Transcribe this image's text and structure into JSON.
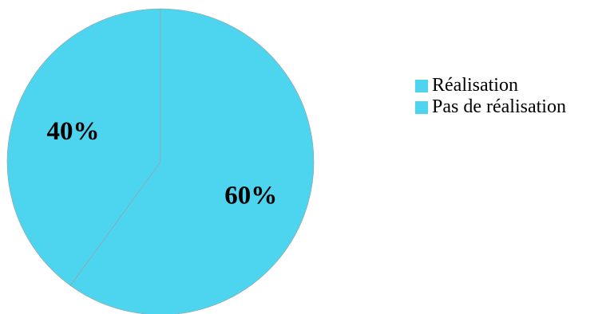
{
  "chart_data": {
    "type": "pie",
    "title": "",
    "slices": [
      {
        "label": "Réalisation",
        "value": 60,
        "value_label": "60%",
        "color": "#4DD4EF"
      },
      {
        "label": "Pas de réalisation",
        "value": 40,
        "value_label": "40%",
        "color": "#4DD4EF"
      }
    ],
    "start": "12 o'clock",
    "direction": "clockwise",
    "legend_position": "right",
    "slice_border_color": "#9E9E9E"
  }
}
